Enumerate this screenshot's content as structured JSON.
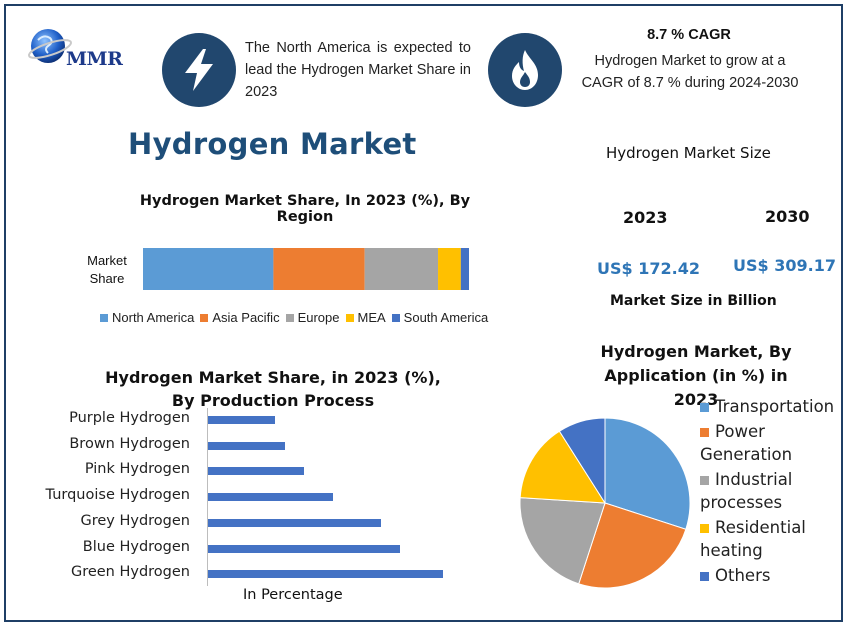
{
  "logo": {
    "text": "MMR"
  },
  "info_left": {
    "icon": "lightning-icon",
    "text": "The North America is expected to lead the Hydrogen Market Share in 2023"
  },
  "info_right": {
    "icon": "flame-icon",
    "cagr": "8.7 % CAGR",
    "text": "Hydrogen Market to grow at a CAGR of 8.7 % during 2024-2030"
  },
  "main_title": "Hydrogen Market",
  "market_size": {
    "title": "Hydrogen Market Size",
    "year_1": "2023",
    "year_2": "2030",
    "value_1": "US$ 172.42",
    "value_2": "US$ 309.17",
    "unit_label": "Market Size in Billion"
  },
  "colors": {
    "blue": "#5b9bd5",
    "orange": "#ed7d31",
    "gray": "#a5a5a5",
    "yellow": "#ffc000",
    "darkblue": "#4472c4",
    "navy": "#21476e"
  },
  "chart_data": [
    {
      "type": "bar",
      "orientation": "horizontal-stacked",
      "title": "Hydrogen Market Share, In 2023 (%), By Region",
      "categories": [
        "Market Share"
      ],
      "series": [
        {
          "name": "North America",
          "values": [
            40
          ],
          "color": "#5b9bd5"
        },
        {
          "name": "Asia Pacific",
          "values": [
            28
          ],
          "color": "#ed7d31"
        },
        {
          "name": "Europe",
          "values": [
            22.5
          ],
          "color": "#a5a5a5"
        },
        {
          "name": "MEA",
          "values": [
            7
          ],
          "color": "#ffc000"
        },
        {
          "name": "South America",
          "values": [
            2.5
          ],
          "color": "#4472c4"
        }
      ],
      "xlim": [
        0,
        100
      ],
      "legend": "bottom"
    },
    {
      "type": "bar",
      "orientation": "horizontal",
      "title": "Hydrogen Market Share, in 2023 (%), By Production Process",
      "xlabel": "In Percentage",
      "categories": [
        "Purple Hydrogen",
        "Brown Hydrogen",
        "Pink Hydrogen",
        "Turquoise Hydrogen",
        "Grey Hydrogen",
        "Blue Hydrogen",
        "Green Hydrogen"
      ],
      "values": [
        7,
        8,
        10,
        13,
        18,
        20,
        24.5
      ],
      "xlim": [
        0,
        25
      ],
      "color": "#4472c4"
    },
    {
      "type": "pie",
      "title": "Hydrogen Market, By Application (in %) in 2023",
      "categories": [
        "Transportation",
        "Power Generation",
        "Industrial processes",
        "Residential heating",
        "Others"
      ],
      "values": [
        30,
        25,
        21,
        15,
        9
      ],
      "colors": [
        "#5b9bd5",
        "#ed7d31",
        "#a5a5a5",
        "#ffc000",
        "#4472c4"
      ],
      "legend": "right"
    }
  ]
}
